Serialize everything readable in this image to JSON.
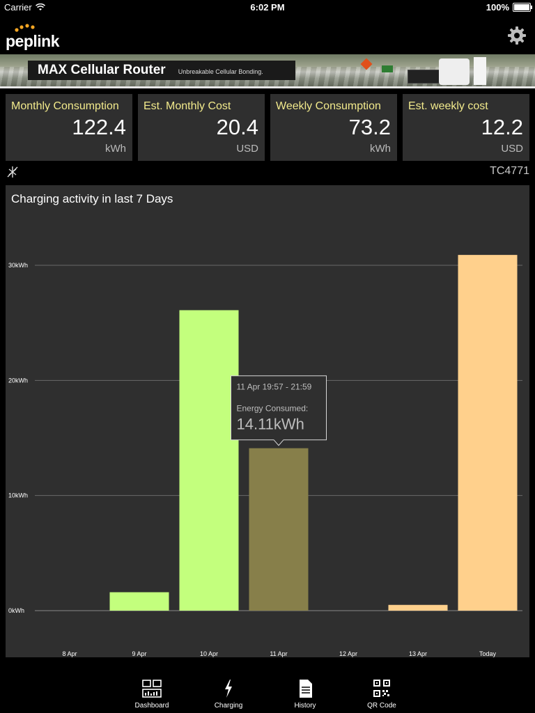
{
  "status_bar": {
    "carrier": "Carrier",
    "time": "6:02 PM",
    "battery": "100%"
  },
  "header": {
    "logo_text": "peplink"
  },
  "banner": {
    "title": "MAX Cellular Router",
    "subtitle": "Unbreakable Cellular Bonding."
  },
  "stats": [
    {
      "label": "Monthly Consumption",
      "value": "122.4",
      "unit": "kWh"
    },
    {
      "label": "Est. Monthly Cost",
      "value": "20.4",
      "unit": "USD"
    },
    {
      "label": "Weekly Consumption",
      "value": "73.2",
      "unit": "kWh"
    },
    {
      "label": "Est. weekly cost",
      "value": "12.2",
      "unit": "USD"
    }
  ],
  "device": {
    "id": "TC4771"
  },
  "chart_data": {
    "type": "bar",
    "title": "Charging activity in last 7 Days",
    "categories": [
      "8 Apr",
      "9 Apr",
      "10 Apr",
      "11 Apr",
      "12 Apr",
      "13 Apr",
      "Today"
    ],
    "values": [
      0,
      1.6,
      26.1,
      14.11,
      0,
      0.5,
      30.9
    ],
    "colors": [
      "#c3ff7d",
      "#c3ff7d",
      "#c3ff7d",
      "#877f4a",
      "#ffd08c",
      "#ffd08c",
      "#ffd08c"
    ],
    "ylim": [
      0,
      30
    ],
    "yticks": [
      0,
      10,
      20,
      30
    ],
    "ytick_labels": [
      "0kWh",
      "10kWh",
      "20kWh",
      "30kWh"
    ],
    "grid": true,
    "tooltip": {
      "category": "11 Apr",
      "time_range": "11 Apr 19:57 - 21:59",
      "label": "Energy Consumed:",
      "value": "14.11kWh"
    }
  },
  "tabs": [
    {
      "label": "Dashboard",
      "icon": "dashboard-icon"
    },
    {
      "label": "Charging",
      "icon": "lightning-icon"
    },
    {
      "label": "History",
      "icon": "document-icon"
    },
    {
      "label": "QR Code",
      "icon": "qr-code-icon"
    }
  ],
  "colors": {
    "accent_label": "#f2ea8c",
    "panel": "#2f2f2f",
    "background": "#000000"
  }
}
